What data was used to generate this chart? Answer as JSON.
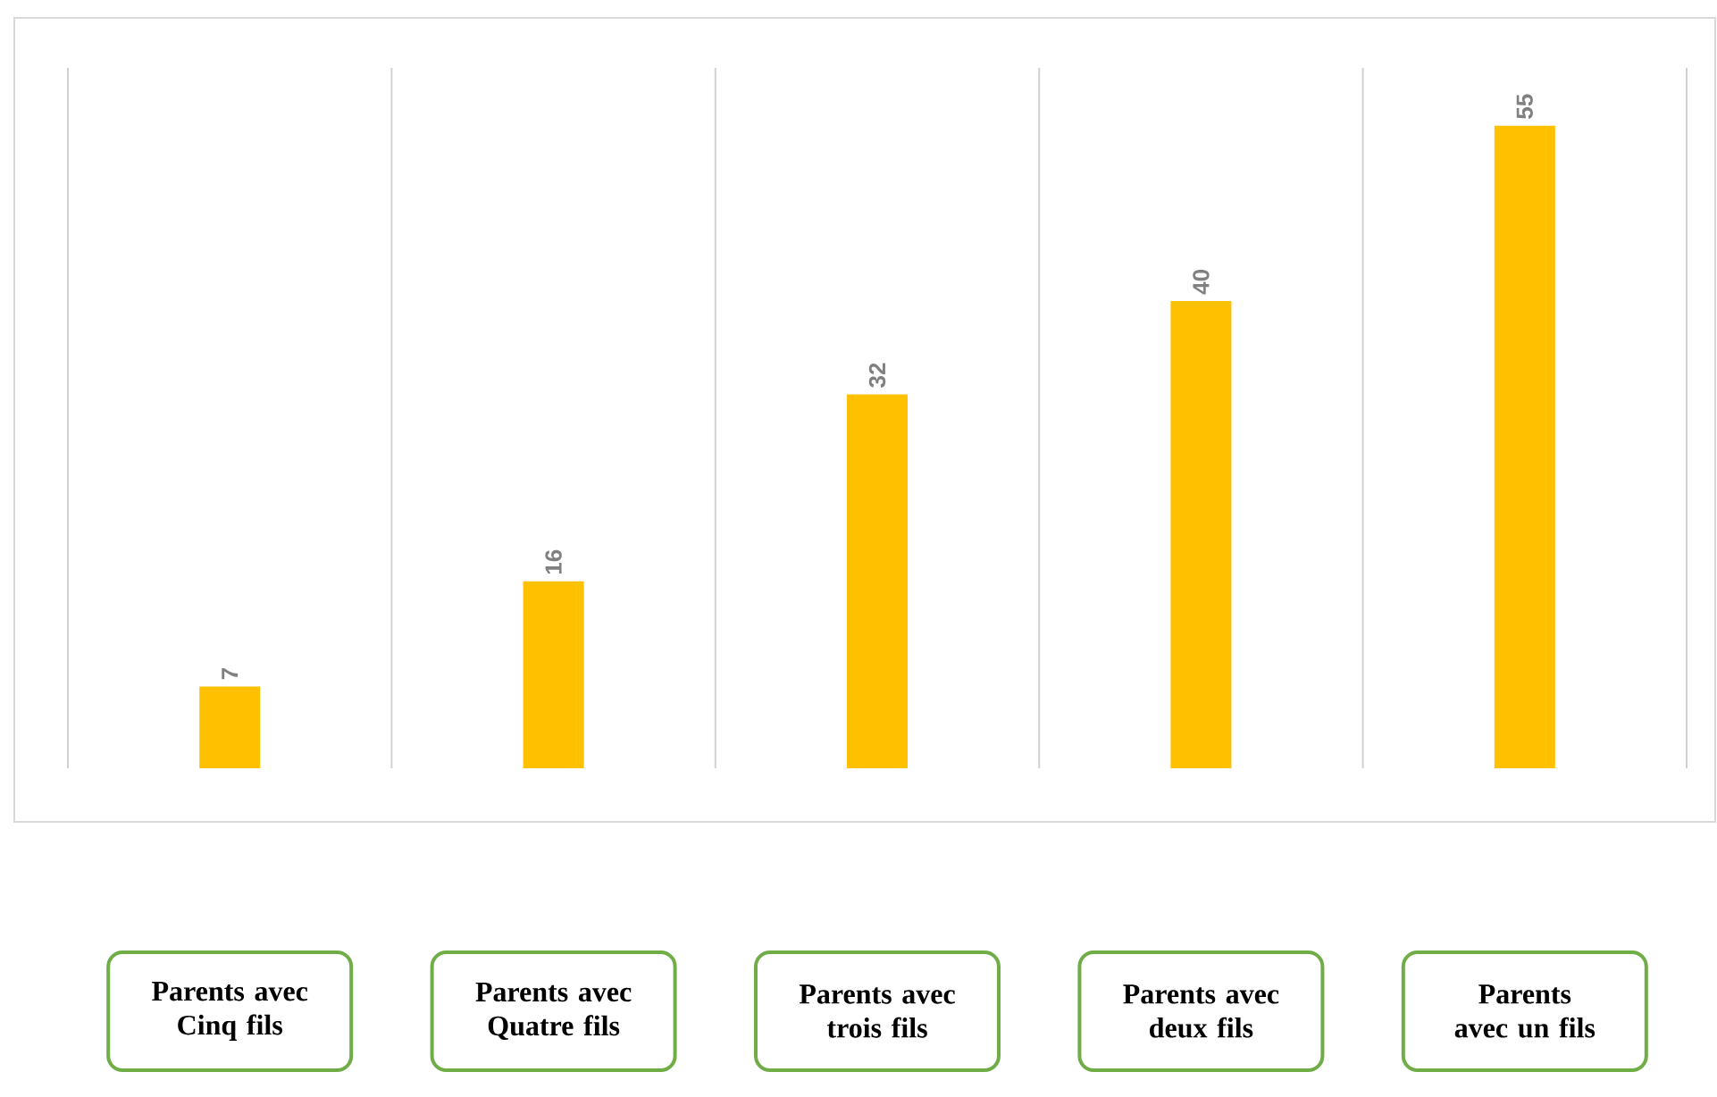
{
  "chart_data": {
    "type": "bar",
    "categories": [
      "Parents avec Cinq fils",
      "Parents avec Quatre fils",
      "Parents avec trois fils",
      "Parents avec deux fils",
      "Parents avec un fils"
    ],
    "values": [
      7,
      16,
      32,
      40,
      55
    ],
    "color": "#ffc000",
    "data_labels": true,
    "grid": "x"
  }
}
